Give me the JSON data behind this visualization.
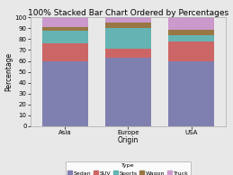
{
  "title": "100% Stacked Bar Chart Ordered by Percentages",
  "xlabel": "Origin",
  "ylabel": "Percentage",
  "categories": [
    "Asia",
    "Europe",
    "USA"
  ],
  "series": {
    "Sedan": [
      60,
      63,
      60
    ],
    "SUV": [
      16,
      8,
      18
    ],
    "Sports": [
      12,
      19,
      6
    ],
    "Wagon": [
      3,
      5,
      5
    ],
    "Truck": [
      9,
      5,
      11
    ]
  },
  "colors": {
    "Sedan": "#8080b0",
    "SUV": "#cc6666",
    "Sports": "#66b3b3",
    "Wagon": "#997744",
    "Truck": "#cc99cc"
  },
  "legend_title": "Type",
  "ylim": [
    0,
    100
  ],
  "yticks": [
    0,
    10,
    20,
    30,
    40,
    50,
    60,
    70,
    80,
    90,
    100
  ],
  "background_color": "#e8e8e8",
  "plot_bg_color": "#e8e8e8",
  "bar_width": 0.72,
  "title_fontsize": 6.5,
  "axis_fontsize": 5.5,
  "tick_fontsize": 5,
  "legend_fontsize": 4.5
}
